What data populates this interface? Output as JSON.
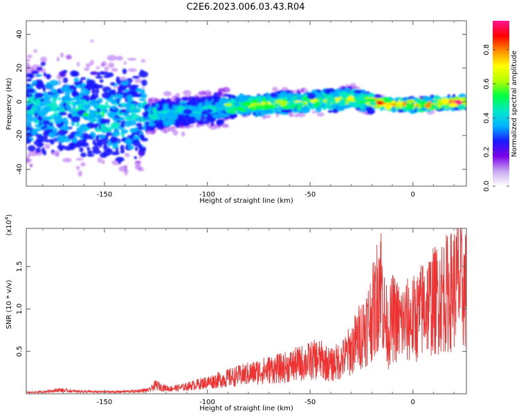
{
  "page": {
    "title": "C2E6.2023.006.03.43.R04"
  },
  "chart_data": [
    {
      "type": "heatmap",
      "xlabel": "Height of straight line (km)",
      "ylabel": "Frequency (Hz)",
      "xlim": [
        -188,
        26
      ],
      "ylim": [
        -50,
        48
      ],
      "xticks": [
        -150,
        -100,
        -50,
        0
      ],
      "xtick_labels": [
        "-150",
        "-100",
        "-50",
        "0"
      ],
      "yticks": [
        -40,
        -20,
        0,
        20,
        40
      ],
      "ytick_labels": [
        "-40",
        "-20",
        "0",
        "20",
        "40"
      ],
      "colorbar": {
        "label": "Normalized spectral amplitude",
        "range": [
          0.0,
          0.97
        ],
        "ticks": [
          0.0,
          0.2,
          0.4,
          0.6,
          0.8
        ],
        "tick_labels": [
          "0.0",
          "0.2",
          "0.4",
          "0.6",
          "0.8"
        ],
        "colormap": [
          "#ffffff",
          "#c8a8f0",
          "#7b00e8",
          "#1a1aff",
          "#00b4ff",
          "#00e8c8",
          "#00ff40",
          "#b4ff00",
          "#ffff00",
          "#ff8c00",
          "#ff0000",
          "#ff1493"
        ]
      },
      "ridge": {
        "x": [
          -188,
          -170,
          -150,
          -130,
          -110,
          -90,
          -70,
          -50,
          -30,
          -15,
          0,
          15,
          26
        ],
        "y": [
          -4,
          -6,
          -8,
          -9,
          -6,
          -3,
          -1,
          0,
          2,
          -1,
          -2,
          -1,
          0
        ]
      },
      "grid": false
    },
    {
      "type": "line",
      "xlabel": "Height of straight line (km)",
      "ylabel": "SNR (10 * v/v)",
      "y_multiplier": "(x10^4)",
      "y_multiplier_base": "(x10",
      "y_multiplier_exp": "4",
      "y_multiplier_close": ")",
      "xlim": [
        -188,
        26
      ],
      "ylim": [
        0,
        1.95
      ],
      "xticks": [
        -150,
        -100,
        -50,
        0
      ],
      "xtick_labels": [
        "-150",
        "-100",
        "-50",
        "0"
      ],
      "yticks": [
        0.5,
        1.0,
        1.5
      ],
      "ytick_labels": [
        "0.5",
        "1.0",
        "1.5"
      ],
      "series": [
        {
          "color": "#ee3333",
          "x": [
            -188,
            -180,
            -172,
            -165,
            -155,
            -145,
            -135,
            -128,
            -125,
            -122,
            -118,
            -112,
            -106,
            -100,
            -94,
            -88,
            -82,
            -76,
            -70,
            -64,
            -58,
            -52,
            -46,
            -40,
            -34,
            -30,
            -26,
            -22,
            -18,
            -16,
            -14,
            -12,
            -10,
            -6,
            -2,
            2,
            6,
            10,
            14,
            18,
            22,
            26
          ],
          "y": [
            0.02,
            0.03,
            0.06,
            0.04,
            0.03,
            0.03,
            0.04,
            0.06,
            0.14,
            0.1,
            0.08,
            0.1,
            0.14,
            0.18,
            0.22,
            0.26,
            0.3,
            0.34,
            0.38,
            0.4,
            0.45,
            0.5,
            0.55,
            0.45,
            0.55,
            0.7,
            0.9,
            1.1,
            1.4,
            1.9,
            1.25,
            0.95,
            1.2,
            1.1,
            1.15,
            1.2,
            1.4,
            1.45,
            1.55,
            1.6,
            1.75,
            1.62
          ]
        }
      ]
    }
  ]
}
